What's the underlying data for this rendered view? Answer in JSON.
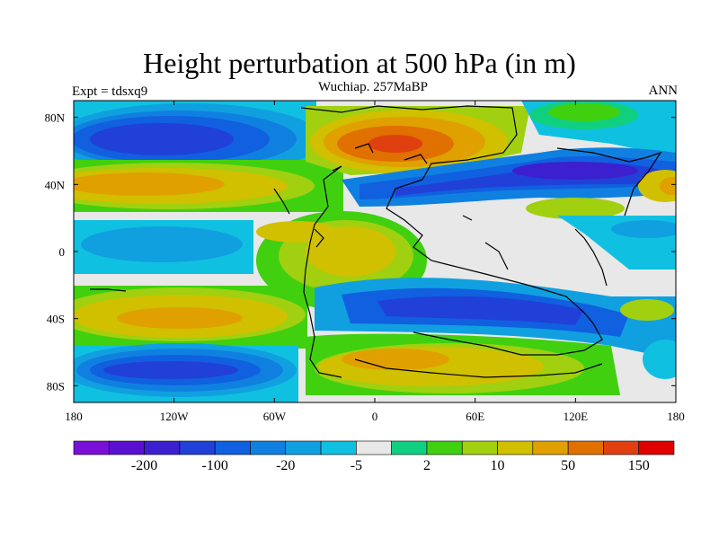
{
  "title": "Height perturbation at 500 hPa (in m)",
  "subtitle": "Wuchiap. 257MaBP",
  "left_string": "Expt = tdsxq9",
  "right_string": "ANN",
  "axes": {
    "x_ticks": [
      {
        "lon": -180,
        "label": "180"
      },
      {
        "lon": -120,
        "label": "120W"
      },
      {
        "lon": -60,
        "label": "60W"
      },
      {
        "lon": 0,
        "label": "0"
      },
      {
        "lon": 60,
        "label": "60E"
      },
      {
        "lon": 120,
        "label": "120E"
      },
      {
        "lon": 180,
        "label": "180"
      }
    ],
    "y_ticks": [
      {
        "lat": 80,
        "label": "80N"
      },
      {
        "lat": 40,
        "label": "40N"
      },
      {
        "lat": 0,
        "label": "0"
      },
      {
        "lat": -40,
        "label": "40S"
      },
      {
        "lat": -80,
        "label": "80S"
      }
    ],
    "lon_range": [
      -180,
      180
    ],
    "lat_range": [
      -90,
      90
    ]
  },
  "colorbar": {
    "colors": [
      "#7a10d8",
      "#5a10d0",
      "#3c20d0",
      "#2040d8",
      "#1060e0",
      "#1080e0",
      "#10a0e0",
      "#10c0e0",
      "#e8e8e8",
      "#10d080",
      "#40d010",
      "#a0d010",
      "#d0c000",
      "#e0a000",
      "#e07000",
      "#e04010",
      "#e00000"
    ],
    "labels": [
      {
        "after_index": 1,
        "text": "-200"
      },
      {
        "after_index": 3,
        "text": "-100"
      },
      {
        "after_index": 5,
        "text": "-20"
      },
      {
        "after_index": 7,
        "text": "-5"
      },
      {
        "after_index": 9,
        "text": "2"
      },
      {
        "after_index": 11,
        "text": "10"
      },
      {
        "after_index": 13,
        "text": "50"
      },
      {
        "after_index": 15,
        "text": "150"
      }
    ]
  }
}
